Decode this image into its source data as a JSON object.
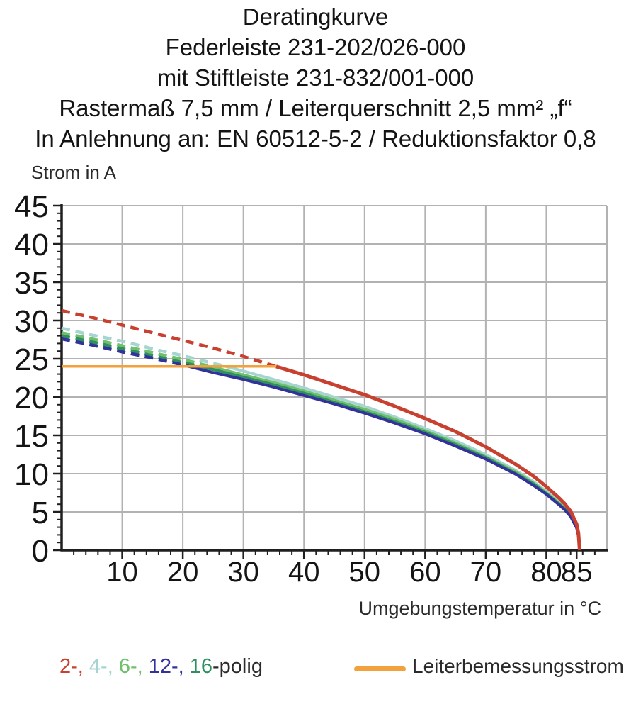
{
  "header": {
    "lines": [
      "Deratingkurve",
      "Federleiste 231-202/026-000",
      "mit Stiftleiste 231-832/001-000",
      "Rastermaß 7,5 mm / Leiterquerschnitt 2,5 mm² „f“",
      "In Anlehnung an: EN 60512-5-2 / Reduktionsfaktor 0,8"
    ]
  },
  "chart_data": {
    "type": "line",
    "ylabel": "Strom in A",
    "xlabel": "Umgebungstemperatur in °C",
    "xlim": [
      0,
      90
    ],
    "ylim": [
      0,
      45
    ],
    "grid": true,
    "grid_color": "#b2b2b2",
    "axis_color": "#1f1f1f",
    "x_gridlines": [
      10,
      20,
      30,
      40,
      50,
      60,
      70,
      80,
      90
    ],
    "y_gridlines": [
      5,
      10,
      15,
      20,
      25,
      30,
      35,
      40,
      45
    ],
    "x_major_ticks": [
      10,
      20,
      30,
      40,
      50,
      60,
      70,
      80,
      85
    ],
    "y_major_ticks": [
      0,
      5,
      10,
      15,
      20,
      25,
      30,
      35,
      40,
      45
    ],
    "x_minor_tick_step": 2,
    "y_minor_tick_step": 1,
    "rated_current_a": 24,
    "max_temperature_c": 85,
    "series": [
      {
        "name": "2-polig",
        "color": "#c8402f",
        "dashed": [
          [
            0,
            31.3
          ],
          [
            5,
            30.4
          ],
          [
            10,
            29.4
          ],
          [
            15,
            28.4
          ],
          [
            20,
            27.4
          ],
          [
            25,
            26.4
          ],
          [
            30,
            25.3
          ],
          [
            35.4,
            24
          ]
        ],
        "solid": [
          [
            35.4,
            24
          ],
          [
            40,
            22.9
          ],
          [
            45,
            21.6
          ],
          [
            50,
            20.3
          ],
          [
            55,
            18.8
          ],
          [
            60,
            17.2
          ],
          [
            65,
            15.5
          ],
          [
            70,
            13.5
          ],
          [
            75,
            11.2
          ],
          [
            78,
            9.6
          ],
          [
            80,
            8.3
          ],
          [
            82,
            6.9
          ],
          [
            83,
            6.1
          ],
          [
            84,
            5.1
          ],
          [
            85,
            3.4
          ],
          [
            85.3,
            2.2
          ],
          [
            85.5,
            0
          ]
        ]
      },
      {
        "name": "4-polig",
        "color": "#a6d5d1",
        "dashed": [
          [
            0,
            29
          ],
          [
            5,
            28.1
          ],
          [
            10,
            27.3
          ],
          [
            15,
            26.3
          ],
          [
            20,
            25.4
          ],
          [
            25,
            24.4
          ],
          [
            27.1,
            24
          ]
        ],
        "solid": [
          [
            27.1,
            24
          ],
          [
            30,
            23.4
          ],
          [
            35,
            22.3
          ],
          [
            40,
            21.2
          ],
          [
            45,
            20
          ],
          [
            50,
            18.8
          ],
          [
            55,
            17.4
          ],
          [
            60,
            15.9
          ],
          [
            65,
            14.3
          ],
          [
            70,
            12.5
          ],
          [
            75,
            10.4
          ],
          [
            78,
            8.9
          ],
          [
            80,
            7.7
          ],
          [
            82,
            6.4
          ],
          [
            83,
            5.6
          ],
          [
            84,
            4.7
          ],
          [
            85,
            3.1
          ],
          [
            85.3,
            2
          ],
          [
            85.5,
            0
          ]
        ]
      },
      {
        "name": "6-polig",
        "color": "#70bf6c",
        "dashed": [
          [
            0,
            28.4
          ],
          [
            5,
            27.6
          ],
          [
            10,
            26.7
          ],
          [
            15,
            25.8
          ],
          [
            20,
            24.9
          ],
          [
            24.6,
            24
          ]
        ],
        "solid": [
          [
            24.6,
            24
          ],
          [
            30,
            22.9
          ],
          [
            35,
            21.9
          ],
          [
            40,
            20.8
          ],
          [
            45,
            19.6
          ],
          [
            50,
            18.4
          ],
          [
            55,
            17.1
          ],
          [
            60,
            15.6
          ],
          [
            65,
            14
          ],
          [
            70,
            12.2
          ],
          [
            75,
            10.2
          ],
          [
            78,
            8.7
          ],
          [
            80,
            7.5
          ],
          [
            82,
            6.2
          ],
          [
            83,
            5.5
          ],
          [
            84,
            4.6
          ],
          [
            85,
            3
          ],
          [
            85.3,
            2
          ],
          [
            85.5,
            0
          ]
        ]
      },
      {
        "name": "12-polig",
        "color": "#32329a",
        "dashed": [
          [
            0,
            27.6
          ],
          [
            5,
            26.8
          ],
          [
            10,
            25.9
          ],
          [
            15,
            25.1
          ],
          [
            20,
            24.2
          ],
          [
            21,
            24
          ]
        ],
        "solid": [
          [
            21,
            24
          ],
          [
            25,
            23.2
          ],
          [
            30,
            22.3
          ],
          [
            35,
            21.3
          ],
          [
            40,
            20.2
          ],
          [
            45,
            19.1
          ],
          [
            50,
            17.9
          ],
          [
            55,
            16.6
          ],
          [
            60,
            15.2
          ],
          [
            65,
            13.6
          ],
          [
            70,
            11.9
          ],
          [
            75,
            9.9
          ],
          [
            78,
            8.4
          ],
          [
            80,
            7.3
          ],
          [
            82,
            6
          ],
          [
            83,
            5.3
          ],
          [
            84,
            4.4
          ],
          [
            85,
            2.9
          ],
          [
            85.3,
            1.9
          ],
          [
            85.5,
            0
          ]
        ]
      },
      {
        "name": "16-polig",
        "color": "#2f8f60",
        "dashed": [
          [
            0,
            28
          ],
          [
            5,
            27.2
          ],
          [
            10,
            26.3
          ],
          [
            15,
            25.4
          ],
          [
            20,
            24.5
          ],
          [
            22.8,
            24
          ]
        ],
        "solid": [
          [
            22.8,
            24
          ],
          [
            25,
            23.6
          ],
          [
            30,
            22.6
          ],
          [
            35,
            21.6
          ],
          [
            40,
            20.5
          ],
          [
            45,
            19.3
          ],
          [
            50,
            18.1
          ],
          [
            55,
            16.8
          ],
          [
            60,
            15.4
          ],
          [
            65,
            13.8
          ],
          [
            70,
            12.1
          ],
          [
            75,
            10
          ],
          [
            78,
            8.6
          ],
          [
            80,
            7.4
          ],
          [
            82,
            6.1
          ],
          [
            83,
            5.4
          ],
          [
            84,
            4.5
          ],
          [
            85,
            3
          ],
          [
            85.3,
            1.9
          ],
          [
            85.5,
            0
          ]
        ]
      },
      {
        "name": "Leiterbemessungsstrom",
        "color": "#f1a23c",
        "solid": [
          [
            0,
            24
          ],
          [
            35.4,
            24
          ]
        ]
      }
    ]
  },
  "legend": {
    "poles": {
      "segments": [
        {
          "text": "2-, ",
          "color": "#c8402f"
        },
        {
          "text": "4-, ",
          "color": "#a6d5d1"
        },
        {
          "text": "6-, ",
          "color": "#70bf6c"
        },
        {
          "text": "12-, ",
          "color": "#32329a"
        },
        {
          "text": "16",
          "color": "#2f8f60"
        },
        {
          "text": "-polig",
          "color": "#2b2b2b"
        }
      ]
    },
    "rated": {
      "label": "Leiterbemessungsstrom",
      "color": "#f1a23c"
    }
  }
}
